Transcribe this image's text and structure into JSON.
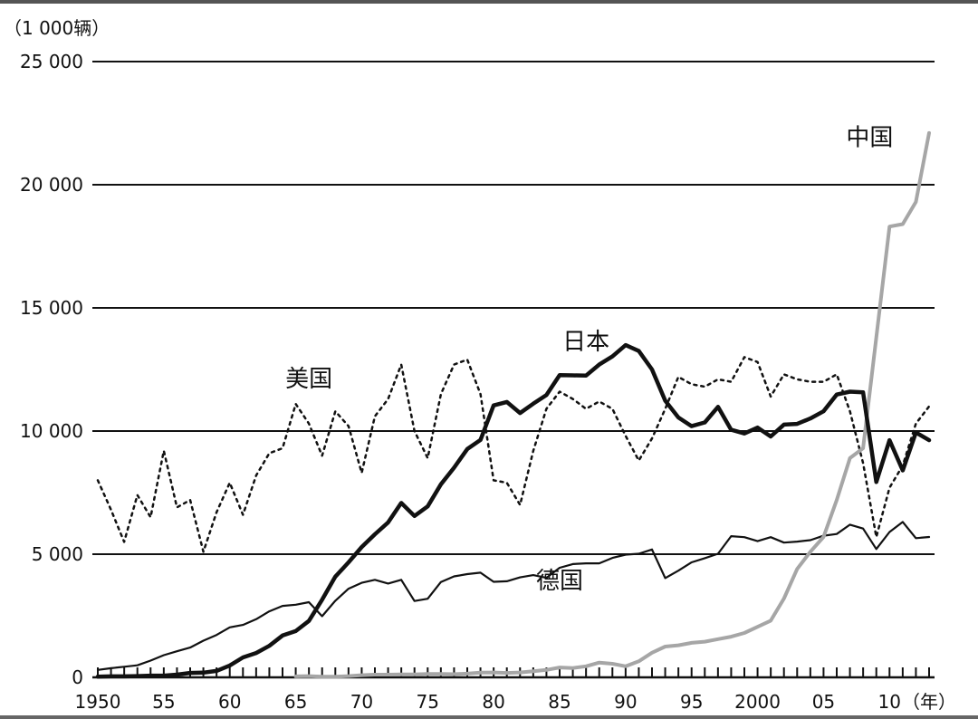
{
  "chart_data": {
    "type": "line",
    "ylabel": "（1 000辆）",
    "xlabel": "（年）",
    "xlim": [
      1950,
      2013
    ],
    "ylim": [
      0,
      25000
    ],
    "grid": "horizontal",
    "y_ticks": [
      0,
      5000,
      10000,
      15000,
      20000,
      25000
    ],
    "y_tick_labels": [
      "0",
      "5 000",
      "10 000",
      "15 000",
      "20 000",
      "25 000"
    ],
    "x_ticks": [
      1950,
      1955,
      1960,
      1965,
      1970,
      1975,
      1980,
      1985,
      1990,
      1995,
      2000,
      2005,
      2010
    ],
    "x_tick_labels": [
      "1950",
      "55",
      "60",
      "65",
      "70",
      "75",
      "80",
      "85",
      "90",
      "95",
      "2000",
      "05",
      "10"
    ],
    "minor_x_ticks_every": 1,
    "series": [
      {
        "name": "美国",
        "label_year": 1966,
        "label_value": 11800,
        "color": "#111111",
        "style": "dotted",
        "x": [
          1950,
          1951,
          1952,
          1953,
          1954,
          1955,
          1956,
          1957,
          1958,
          1959,
          1960,
          1961,
          1962,
          1963,
          1964,
          1965,
          1966,
          1967,
          1968,
          1969,
          1970,
          1971,
          1972,
          1973,
          1974,
          1975,
          1976,
          1977,
          1978,
          1979,
          1980,
          1981,
          1982,
          1983,
          1984,
          1985,
          1986,
          1987,
          1988,
          1989,
          1990,
          1991,
          1992,
          1993,
          1994,
          1995,
          1996,
          1997,
          1998,
          1999,
          2000,
          2001,
          2002,
          2003,
          2004,
          2005,
          2006,
          2007,
          2008,
          2009,
          2010,
          2011,
          2012,
          2013
        ],
        "values": [
          8000,
          6800,
          5500,
          7400,
          6500,
          9200,
          6900,
          7200,
          5100,
          6700,
          7900,
          6600,
          8200,
          9100,
          9300,
          11100,
          10300,
          9000,
          10800,
          10200,
          8300,
          10600,
          11300,
          12700,
          10000,
          8900,
          11500,
          12700,
          12900,
          11500,
          8000,
          7900,
          7000,
          9200,
          10900,
          11600,
          11300,
          10900,
          11200,
          10900,
          9800,
          8800,
          9700,
          10900,
          12200,
          11900,
          11800,
          12100,
          12000,
          13000,
          12800,
          11400,
          12300,
          12100,
          12000,
          12000,
          12300,
          10800,
          8700,
          5700,
          7700,
          8600,
          10300,
          11000
        ]
      },
      {
        "name": "日本",
        "label_year": 1987,
        "label_value": 13300,
        "color": "#111111",
        "style": "thick",
        "x": [
          1950,
          1951,
          1952,
          1953,
          1954,
          1955,
          1956,
          1957,
          1958,
          1959,
          1960,
          1961,
          1962,
          1963,
          1964,
          1965,
          1966,
          1967,
          1968,
          1969,
          1970,
          1971,
          1972,
          1973,
          1974,
          1975,
          1976,
          1977,
          1978,
          1979,
          1980,
          1981,
          1982,
          1983,
          1984,
          1985,
          1986,
          1987,
          1988,
          1989,
          1990,
          1991,
          1992,
          1993,
          1994,
          1995,
          1996,
          1997,
          1998,
          1999,
          2000,
          2001,
          2002,
          2003,
          2004,
          2005,
          2006,
          2007,
          2008,
          2009,
          2010,
          2011,
          2012,
          2013
        ],
        "values": [
          30,
          40,
          40,
          50,
          70,
          70,
          110,
          180,
          190,
          260,
          480,
          810,
          990,
          1280,
          1700,
          1880,
          2290,
          3150,
          4090,
          4670,
          5290,
          5810,
          6290,
          7080,
          6550,
          6940,
          7840,
          8510,
          9270,
          9640,
          11040,
          11180,
          10730,
          11110,
          11460,
          12270,
          12260,
          12250,
          12700,
          13030,
          13490,
          13250,
          12500,
          11230,
          10550,
          10200,
          10350,
          10980,
          10050,
          9900,
          10140,
          9780,
          10260,
          10290,
          10510,
          10800,
          11480,
          11600,
          11570,
          7930,
          9630,
          8400,
          9940,
          9630
        ]
      },
      {
        "name": "德国",
        "label_year": 1985,
        "label_value": 3600,
        "color": "#111111",
        "style": "thin",
        "x": [
          1950,
          1951,
          1952,
          1953,
          1954,
          1955,
          1956,
          1957,
          1958,
          1959,
          1960,
          1961,
          1962,
          1963,
          1964,
          1965,
          1966,
          1967,
          1968,
          1969,
          1970,
          1971,
          1972,
          1973,
          1974,
          1975,
          1976,
          1977,
          1978,
          1979,
          1980,
          1981,
          1982,
          1983,
          1984,
          1985,
          1986,
          1987,
          1988,
          1989,
          1990,
          1991,
          1992,
          1993,
          1994,
          1995,
          1996,
          1997,
          1998,
          1999,
          2000,
          2001,
          2002,
          2003,
          2004,
          2005,
          2006,
          2007,
          2008,
          2009,
          2010,
          2011,
          2012,
          2013
        ],
        "values": [
          300,
          370,
          430,
          490,
          680,
          900,
          1060,
          1210,
          1490,
          1720,
          2030,
          2130,
          2360,
          2680,
          2900,
          2950,
          3050,
          2480,
          3110,
          3600,
          3840,
          3960,
          3810,
          3960,
          3100,
          3190,
          3870,
          4100,
          4190,
          4250,
          3880,
          3900,
          4060,
          4150,
          4040,
          4450,
          4600,
          4630,
          4630,
          4850,
          4980,
          5020,
          5190,
          4030,
          4330,
          4670,
          4840,
          5020,
          5730,
          5690,
          5530,
          5690,
          5470,
          5510,
          5570,
          5750,
          5820,
          6200,
          6040,
          5210,
          5900,
          6310,
          5650,
          5700
        ]
      },
      {
        "name": "中国",
        "label_year": 2008.5,
        "label_value": 21600,
        "color": "#a6a6a6",
        "style": "gray",
        "x": [
          1965,
          1966,
          1967,
          1968,
          1969,
          1970,
          1971,
          1972,
          1973,
          1974,
          1975,
          1976,
          1977,
          1978,
          1979,
          1980,
          1981,
          1982,
          1983,
          1984,
          1985,
          1986,
          1987,
          1988,
          1989,
          1990,
          1991,
          1992,
          1993,
          1994,
          1995,
          1996,
          1997,
          1998,
          1999,
          2000,
          2001,
          2002,
          2003,
          2004,
          2005,
          2006,
          2007,
          2008,
          2009,
          2010,
          2011,
          2012,
          2013
        ],
        "values": [
          40,
          50,
          30,
          30,
          50,
          90,
          110,
          110,
          120,
          120,
          140,
          140,
          130,
          150,
          190,
          200,
          180,
          200,
          250,
          300,
          400,
          380,
          450,
          600,
          550,
          450,
          650,
          1000,
          1250,
          1300,
          1400,
          1450,
          1550,
          1650,
          1800,
          2050,
          2300,
          3200,
          4400,
          5100,
          5700,
          7200,
          8900,
          9300,
          13800,
          18300,
          18400,
          19300,
          22100
        ]
      }
    ]
  }
}
